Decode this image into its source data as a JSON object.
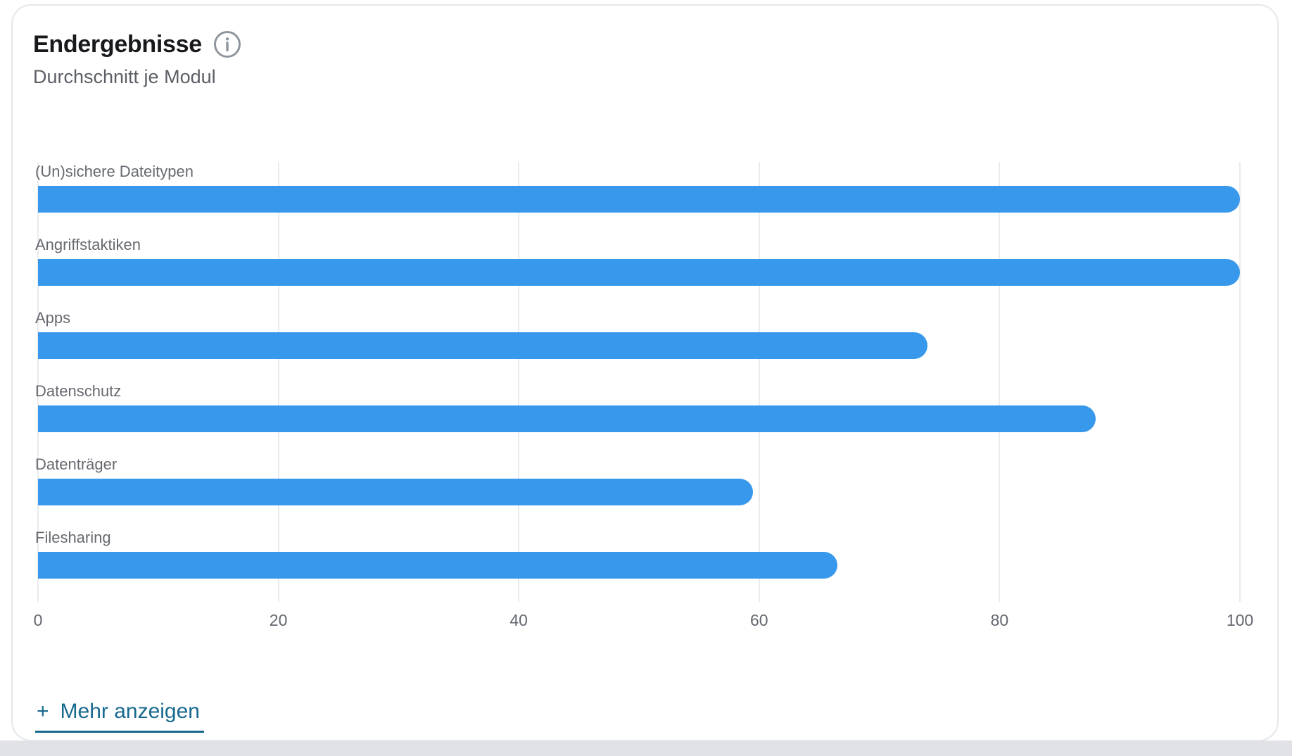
{
  "card": {
    "title": "Endergebnisse",
    "subtitle": "Durchschnitt je Modul",
    "show_more": {
      "plus": "+",
      "label": "Mehr anzeigen"
    }
  },
  "chart_data": {
    "type": "bar",
    "orientation": "horizontal",
    "title": "Endergebnisse",
    "subtitle": "Durchschnitt je Modul",
    "categories": [
      "(Un)sichere Dateitypen",
      "Angriffstaktiken",
      "Apps",
      "Datenschutz",
      "Datenträger",
      "Filesharing"
    ],
    "values": [
      100,
      100,
      74,
      88,
      59.5,
      66.5
    ],
    "xlim": [
      0,
      100
    ],
    "x_ticks": [
      0,
      20,
      40,
      60,
      80,
      100
    ],
    "grid": true,
    "legend": false
  },
  "colors": {
    "bar": "#3798ec",
    "gridline": "#eaebed",
    "link": "#17698e",
    "title_text": "#17191c",
    "subtitle_text": "#5c6066",
    "label_text": "#66696f",
    "axis_text": "#63676f",
    "info_icon": "#8f959d"
  }
}
